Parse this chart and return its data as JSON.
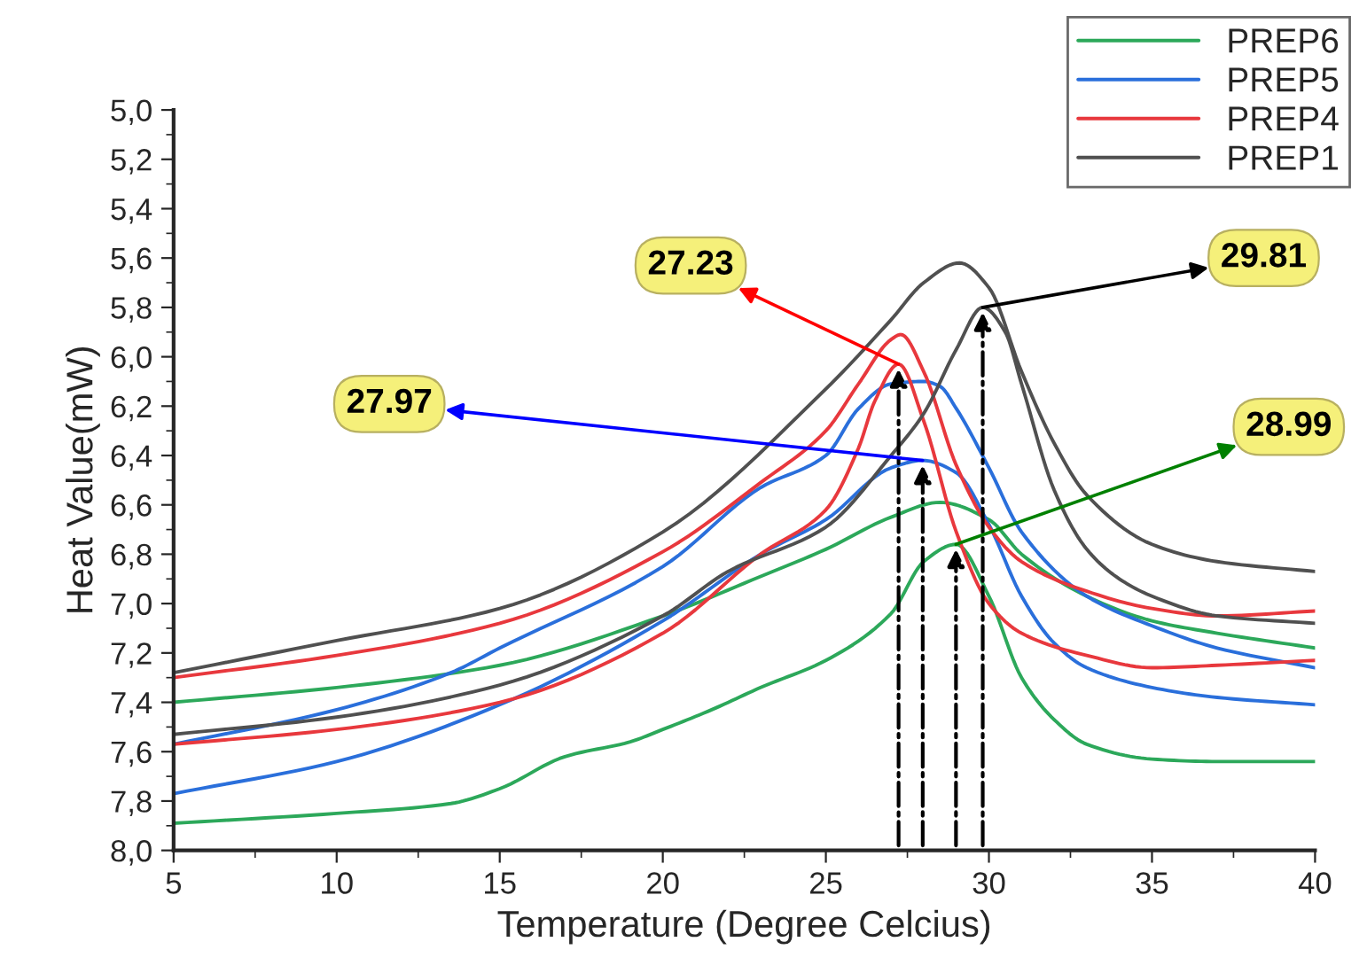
{
  "chart_data": {
    "type": "line",
    "xlabel": "Temperature (Degree Celcius)",
    "ylabel": "Heat Value(mW)",
    "xlim": [
      5,
      40
    ],
    "xticks": [
      5,
      10,
      15,
      20,
      25,
      30,
      35,
      40
    ],
    "ylim": [
      8.0,
      5.0
    ],
    "yticks": [
      {
        "value": 5.0,
        "label": "5,0"
      },
      {
        "value": 5.2,
        "label": "5,2"
      },
      {
        "value": 5.4,
        "label": "5,4"
      },
      {
        "value": 5.6,
        "label": "5,6"
      },
      {
        "value": 5.8,
        "label": "5,8"
      },
      {
        "value": 6.0,
        "label": "6,0"
      },
      {
        "value": 6.2,
        "label": "6,2"
      },
      {
        "value": 6.4,
        "label": "6,4"
      },
      {
        "value": 6.6,
        "label": "6,6"
      },
      {
        "value": 6.8,
        "label": "6,8"
      },
      {
        "value": 7.0,
        "label": "7,0"
      },
      {
        "value": 7.2,
        "label": "7,2"
      },
      {
        "value": 7.4,
        "label": "7,4"
      },
      {
        "value": 7.6,
        "label": "7,6"
      },
      {
        "value": 7.8,
        "label": "7,8"
      },
      {
        "value": 8.0,
        "label": "8,0"
      }
    ],
    "grid": false,
    "legend": "top right",
    "marker": "none",
    "line_style": "solid",
    "series": [
      {
        "name": "PREP6",
        "color": "#2ca85a",
        "x": [
          5,
          10,
          15,
          20,
          23,
          25,
          27,
          28.5,
          30,
          31,
          33,
          35,
          37,
          40
        ],
        "values": [
          7.4,
          7.34,
          7.25,
          7.05,
          6.89,
          6.78,
          6.65,
          6.59,
          6.66,
          6.8,
          6.97,
          7.07,
          7.12,
          7.18
        ]
      },
      {
        "color": "#2ca85a",
        "x": [
          5,
          10,
          13.5,
          15,
          17,
          19,
          20,
          21.5,
          23,
          25,
          27,
          28,
          28.99,
          30,
          31,
          32,
          33,
          35,
          37,
          40
        ],
        "values": [
          7.89,
          7.85,
          7.81,
          7.75,
          7.62,
          7.56,
          7.51,
          7.43,
          7.34,
          7.23,
          7.04,
          6.83,
          6.76,
          6.97,
          7.3,
          7.47,
          7.57,
          7.63,
          7.64,
          7.64
        ]
      },
      {
        "name": "PREP5",
        "color": "#2a6fdb",
        "x": [
          5,
          10,
          13.5,
          15,
          20,
          23,
          25,
          26,
          27,
          28,
          28.5,
          29,
          30,
          31,
          33,
          35,
          37,
          40
        ],
        "values": [
          7.57,
          7.43,
          7.28,
          7.18,
          6.85,
          6.53,
          6.4,
          6.21,
          6.11,
          6.1,
          6.12,
          6.21,
          6.45,
          6.71,
          6.97,
          7.09,
          7.18,
          7.26
        ]
      },
      {
        "color": "#2a6fdb",
        "x": [
          5,
          10,
          15,
          20,
          23,
          25,
          27,
          27.97,
          29,
          30,
          31,
          32,
          33,
          35,
          37,
          40
        ],
        "values": [
          7.77,
          7.64,
          7.41,
          7.07,
          6.8,
          6.66,
          6.45,
          6.42,
          6.47,
          6.68,
          6.97,
          7.16,
          7.26,
          7.34,
          7.38,
          7.41
        ]
      },
      {
        "name": "PREP4",
        "color": "#e8383d",
        "x": [
          5,
          10,
          15,
          20,
          23,
          25,
          26,
          27,
          27.3,
          28,
          29,
          30,
          31,
          33,
          35,
          37,
          40
        ],
        "values": [
          7.3,
          7.21,
          7.08,
          6.79,
          6.51,
          6.3,
          6.11,
          5.93,
          5.91,
          6.06,
          6.44,
          6.69,
          6.83,
          6.95,
          7.02,
          7.05,
          7.03
        ]
      },
      {
        "color": "#e8383d",
        "x": [
          5,
          10,
          15,
          20,
          23,
          25,
          26,
          26.5,
          27.23,
          28,
          29,
          30,
          31,
          33,
          35,
          37,
          40
        ],
        "values": [
          7.57,
          7.51,
          7.4,
          7.12,
          6.8,
          6.62,
          6.37,
          6.18,
          6.03,
          6.26,
          6.71,
          7.0,
          7.12,
          7.21,
          7.26,
          7.25,
          7.23
        ]
      },
      {
        "name": "PREP1",
        "color": "#505050",
        "x": [
          5,
          10,
          15,
          20,
          25,
          27,
          28,
          29.1,
          30,
          31,
          32,
          33,
          35,
          37,
          40
        ],
        "values": [
          7.28,
          7.15,
          7.02,
          6.71,
          6.13,
          5.85,
          5.7,
          5.62,
          5.72,
          6.06,
          6.35,
          6.56,
          6.76,
          6.83,
          6.87
        ]
      },
      {
        "color": "#505050",
        "x": [
          5,
          10,
          15,
          20,
          22,
          25,
          27,
          28,
          29,
          29.81,
          30.5,
          31,
          32,
          33,
          34,
          35,
          37,
          40
        ],
        "values": [
          7.53,
          7.46,
          7.33,
          7.05,
          6.87,
          6.69,
          6.4,
          6.23,
          5.97,
          5.8,
          5.9,
          6.11,
          6.54,
          6.78,
          6.9,
          6.97,
          7.05,
          7.08
        ]
      }
    ],
    "annotations": [
      {
        "text": "27.23",
        "x": 27.23,
        "y": 6.03
      },
      {
        "text": "27.97",
        "x": 27.97,
        "y": 6.42
      },
      {
        "text": "28.99",
        "x": 28.99,
        "y": 6.76
      },
      {
        "text": "29.81",
        "x": 29.81,
        "y": 5.8
      }
    ]
  }
}
